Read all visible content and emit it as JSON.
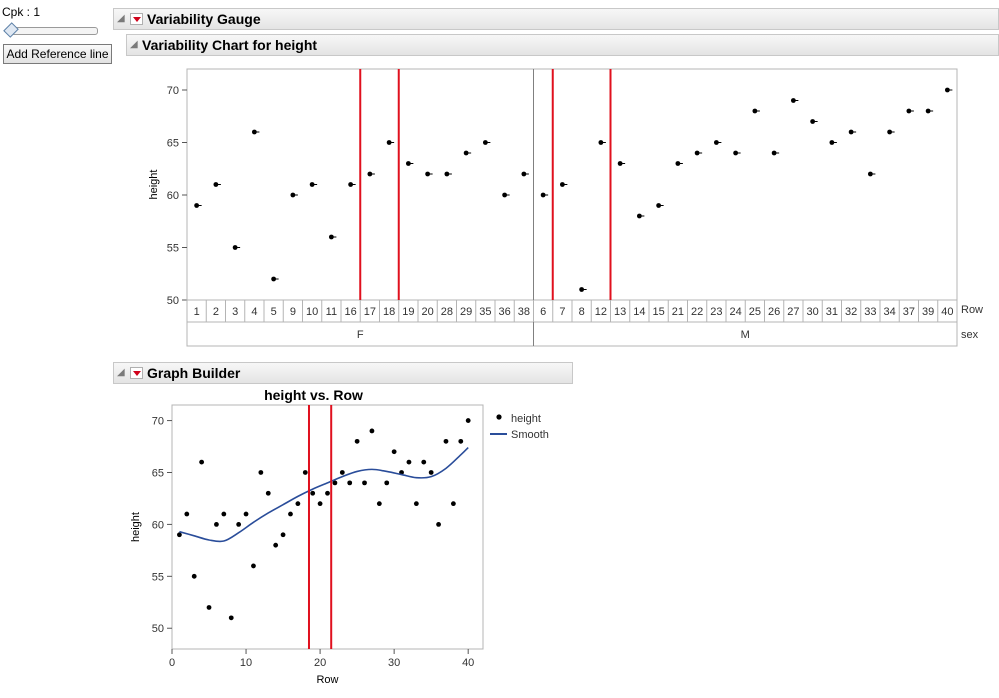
{
  "control": {
    "cpk_label": "Cpk : 1",
    "slider_value": 1,
    "add_ref_button": "Add Reference line"
  },
  "outlines": {
    "variability_gauge": "Variability Gauge",
    "variability_chart": "Variability Chart for height",
    "graph_builder": "Graph Builder"
  },
  "colors": {
    "points": "#000000",
    "reference_lines": "#e0101e",
    "smooth": "#2a4d9a",
    "separator": "#808080"
  },
  "chart_data": [
    {
      "type": "scatter",
      "title": "Variability Chart for height",
      "ylabel": "height",
      "ylim": [
        50,
        72
      ],
      "yticks": [
        50,
        55,
        60,
        65,
        70
      ],
      "row_header": "Row",
      "group_header": "sex",
      "groups": [
        {
          "name": "F",
          "rows": [
            "1",
            "2",
            "3",
            "4",
            "5",
            "9",
            "10",
            "11",
            "16",
            "17",
            "18",
            "19",
            "20",
            "28",
            "29",
            "35",
            "36",
            "38"
          ],
          "values": [
            59,
            61,
            55,
            66,
            52,
            60,
            61,
            56,
            61,
            62,
            65,
            63,
            62,
            62,
            64,
            65,
            60,
            62
          ]
        },
        {
          "name": "M",
          "rows": [
            "6",
            "7",
            "8",
            "12",
            "13",
            "14",
            "15",
            "21",
            "22",
            "23",
            "24",
            "25",
            "26",
            "27",
            "30",
            "31",
            "32",
            "33",
            "34",
            "37",
            "39",
            "40"
          ],
          "values": [
            60,
            61,
            51,
            65,
            63,
            58,
            59,
            63,
            64,
            65,
            64,
            68,
            64,
            69,
            67,
            65,
            66,
            62,
            66,
            68,
            68,
            70
          ]
        }
      ],
      "reference_lines_between": [
        {
          "group": "F",
          "after_index": 8
        },
        {
          "group": "F",
          "after_index": 10
        },
        {
          "group": "M",
          "after_index": 0
        },
        {
          "group": "M",
          "after_index": 3
        }
      ]
    },
    {
      "type": "scatter",
      "title": "height vs. Row",
      "xlabel": "Row",
      "ylabel": "height",
      "xlim": [
        0,
        42
      ],
      "ylim": [
        48,
        71.5
      ],
      "xticks": [
        0,
        10,
        20,
        30,
        40
      ],
      "yticks": [
        50,
        55,
        60,
        65,
        70
      ],
      "series": [
        {
          "name": "height",
          "x": [
            1,
            2,
            3,
            4,
            5,
            6,
            7,
            8,
            9,
            10,
            11,
            12,
            13,
            14,
            15,
            16,
            17,
            18,
            19,
            20,
            21,
            22,
            23,
            24,
            25,
            26,
            27,
            28,
            29,
            30,
            31,
            32,
            33,
            34,
            35,
            36,
            37,
            38,
            39,
            40
          ],
          "y": [
            59,
            61,
            55,
            66,
            52,
            60,
            61,
            51,
            60,
            61,
            56,
            65,
            63,
            58,
            59,
            61,
            62,
            65,
            63,
            62,
            63,
            64,
            65,
            64,
            68,
            64,
            69,
            62,
            64,
            67,
            65,
            66,
            62,
            66,
            65,
            60,
            68,
            62,
            68,
            70
          ]
        },
        {
          "name": "Smooth",
          "x": [
            1,
            3,
            5,
            7,
            9,
            11,
            13,
            15,
            17,
            19,
            21,
            23,
            25,
            27,
            29,
            31,
            33,
            35,
            37,
            39,
            40
          ],
          "y": [
            59.3,
            58.9,
            58.5,
            58.4,
            59.2,
            60.2,
            61.1,
            61.9,
            62.7,
            63.4,
            64.0,
            64.6,
            65.1,
            65.3,
            65.1,
            64.8,
            64.5,
            64.6,
            65.4,
            66.7,
            67.4
          ]
        }
      ],
      "reference_lines_x": [
        18.5,
        21.5
      ]
    }
  ]
}
